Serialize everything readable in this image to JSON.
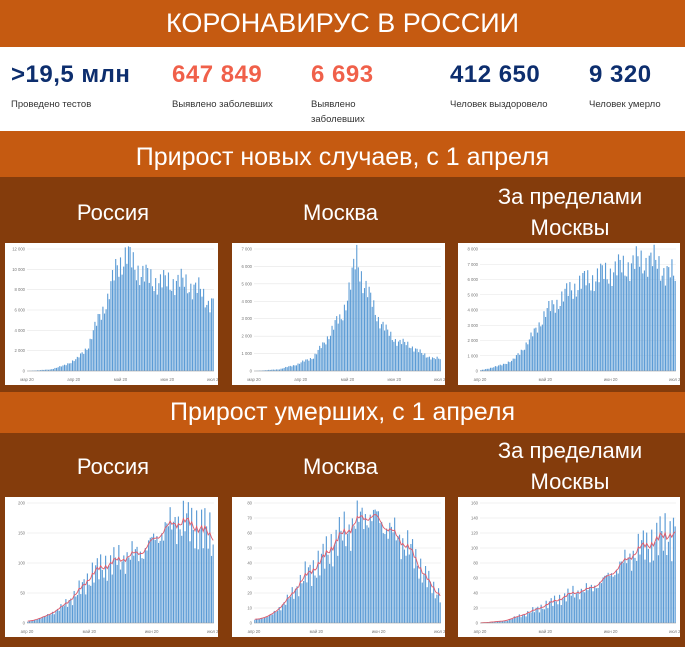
{
  "title": "КОРОНАВИРУС В РОССИИ",
  "stats": [
    {
      "value": ">19,5 млн",
      "label": "Проведено тестов",
      "color": "#0d2e6e"
    },
    {
      "value": "647 849",
      "label": "Выявлено заболевших",
      "color": "#f0604a"
    },
    {
      "value": "6 693",
      "label": "Выявлено заболевших\nза последние сутки",
      "color": "#f0604a"
    },
    {
      "value": "412 650",
      "label": "Человек выздоровело",
      "color": "#0d2e6e"
    },
    {
      "value": "9 320",
      "label": "Человек умерло",
      "color": "#0d2e6e"
    }
  ],
  "sections": [
    {
      "title": "Прирост новых случаев, с 1 апреля",
      "columns": [
        "Россия",
        "Москва",
        "За пределами Москвы"
      ]
    },
    {
      "title": "Прирост умерших, с 1 апреля",
      "columns": [
        "Россия",
        "Москва",
        "За пределами Москвы"
      ]
    }
  ],
  "colors": {
    "band": "#c55a11",
    "dark": "#843c0c",
    "bar": "#5b9bd5",
    "trend": "#e05a6a"
  },
  "chart_data": [
    {
      "type": "bar",
      "title": "Россия",
      "ylim": [
        0,
        12000
      ],
      "yticks": [
        "0",
        "2 000",
        "4 000",
        "6 000",
        "8 000",
        "10 000",
        "12 000"
      ],
      "xticks": [
        "мар 20",
        "апр 20",
        "май 20",
        "июн 20",
        "июл 20"
      ],
      "anchors": [
        [
          0,
          0
        ],
        [
          14,
          150
        ],
        [
          22,
          500
        ],
        [
          31,
          1200
        ],
        [
          38,
          2500
        ],
        [
          45,
          5500
        ],
        [
          50,
          7000
        ],
        [
          56,
          10500
        ],
        [
          62,
          11300
        ],
        [
          66,
          10500
        ],
        [
          72,
          9500
        ],
        [
          78,
          8900
        ],
        [
          85,
          8700
        ],
        [
          92,
          8800
        ],
        [
          100,
          8600
        ],
        [
          108,
          7800
        ],
        [
          113,
          6800
        ],
        [
          116,
          6700
        ]
      ],
      "n": 117
    },
    {
      "type": "bar",
      "title": "Москва",
      "ylim": [
        0,
        7000
      ],
      "yticks": [
        "0",
        "1 000",
        "2 000",
        "3 000",
        "4 000",
        "5 000",
        "6 000",
        "7 000"
      ],
      "xticks": [
        "мар 20",
        "апр 20",
        "май 20",
        "июн 20",
        "июл 20"
      ],
      "anchors": [
        [
          0,
          0
        ],
        [
          16,
          100
        ],
        [
          28,
          400
        ],
        [
          38,
          800
        ],
        [
          45,
          1600
        ],
        [
          52,
          2700
        ],
        [
          56,
          3000
        ],
        [
          62,
          5000
        ],
        [
          66,
          6500
        ],
        [
          70,
          5200
        ],
        [
          74,
          4300
        ],
        [
          80,
          3000
        ],
        [
          86,
          2200
        ],
        [
          92,
          1700
        ],
        [
          100,
          1500
        ],
        [
          108,
          1000
        ],
        [
          116,
          700
        ],
        [
          120,
          700
        ]
      ],
      "n": 121
    },
    {
      "type": "bar",
      "title": "За пределами Москвы",
      "ylim": [
        0,
        8000
      ],
      "yticks": [
        "0",
        "1 000",
        "2 000",
        "3 000",
        "4 000",
        "5 000",
        "6 000",
        "7 000",
        "8 000"
      ],
      "xticks": [
        "апр 20",
        "май 20",
        "июн 20",
        "июл 20"
      ],
      "anchors": [
        [
          0,
          50
        ],
        [
          10,
          300
        ],
        [
          20,
          700
        ],
        [
          30,
          2000
        ],
        [
          40,
          3800
        ],
        [
          50,
          4800
        ],
        [
          60,
          5700
        ],
        [
          70,
          6100
        ],
        [
          80,
          6500
        ],
        [
          90,
          6900
        ],
        [
          100,
          7200
        ],
        [
          104,
          7300
        ],
        [
          110,
          6900
        ],
        [
          116,
          6400
        ],
        [
          120,
          6100
        ]
      ],
      "n": 121
    },
    {
      "type": "bar",
      "title": "Россия",
      "ylim": [
        0,
        200
      ],
      "yticks": [
        "0",
        "50",
        "100",
        "150",
        "200"
      ],
      "xticks": [
        "апр 20",
        "май 20",
        "июн 20",
        "июл 20"
      ],
      "anchors": [
        [
          0,
          2
        ],
        [
          10,
          10
        ],
        [
          20,
          25
        ],
        [
          30,
          50
        ],
        [
          40,
          85
        ],
        [
          50,
          100
        ],
        [
          60,
          110
        ],
        [
          70,
          120
        ],
        [
          80,
          150
        ],
        [
          90,
          170
        ],
        [
          100,
          165
        ],
        [
          108,
          150
        ],
        [
          112,
          145
        ]
      ],
      "n": 113,
      "trend": true
    },
    {
      "type": "bar",
      "title": "Москва",
      "ylim": [
        0,
        80
      ],
      "yticks": [
        "0",
        "10",
        "20",
        "30",
        "40",
        "50",
        "60",
        "70",
        "80"
      ],
      "xticks": [
        "апр 20",
        "май 20",
        "июн 20",
        "июл 20"
      ],
      "anchors": [
        [
          0,
          2
        ],
        [
          10,
          5
        ],
        [
          20,
          15
        ],
        [
          30,
          30
        ],
        [
          40,
          40
        ],
        [
          50,
          55
        ],
        [
          60,
          65
        ],
        [
          68,
          72
        ],
        [
          75,
          70
        ],
        [
          85,
          60
        ],
        [
          95,
          50
        ],
        [
          103,
          35
        ],
        [
          110,
          22
        ],
        [
          114,
          20
        ]
      ],
      "n": 115,
      "trend": true
    },
    {
      "type": "bar",
      "title": "За пределами Москвы",
      "ylim": [
        0,
        160
      ],
      "yticks": [
        "0",
        "20",
        "40",
        "60",
        "80",
        "100",
        "120",
        "140",
        "160"
      ],
      "xticks": [
        "апр 20",
        "май 20",
        "июн 20",
        "июл 20"
      ],
      "anchors": [
        [
          0,
          0
        ],
        [
          15,
          3
        ],
        [
          30,
          15
        ],
        [
          45,
          30
        ],
        [
          55,
          40
        ],
        [
          65,
          45
        ],
        [
          75,
          60
        ],
        [
          85,
          80
        ],
        [
          95,
          100
        ],
        [
          105,
          110
        ],
        [
          112,
          120
        ],
        [
          116,
          120
        ]
      ],
      "n": 117,
      "trend": true
    }
  ]
}
